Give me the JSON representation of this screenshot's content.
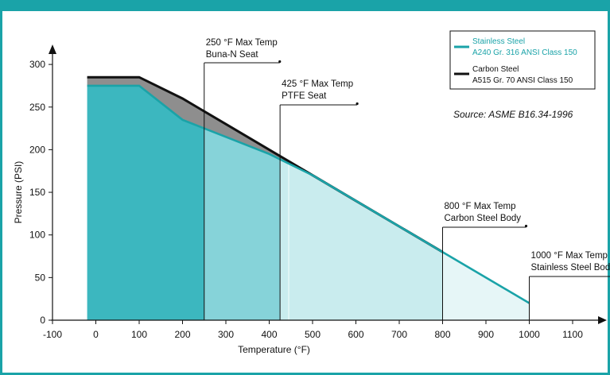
{
  "chart_data": {
    "type": "area",
    "xlabel": "Temperature (°F)",
    "ylabel": "Pressure (PSI)",
    "xlim": [
      -100,
      1100
    ],
    "ylim": [
      0,
      300
    ],
    "x_ticks": [
      -100,
      0,
      100,
      200,
      300,
      400,
      500,
      600,
      700,
      800,
      900,
      1000,
      1100
    ],
    "y_ticks": [
      0,
      50,
      100,
      150,
      200,
      250,
      300
    ],
    "series": [
      {
        "name": "Carbon Steel",
        "detail": "A515 Gr. 70 ANSI Class 150",
        "color": "#111111",
        "x": [
          -20,
          100,
          200,
          300,
          400,
          500,
          600,
          700,
          800
        ],
        "y": [
          285,
          285,
          260,
          230,
          200,
          170,
          140,
          110,
          80
        ]
      },
      {
        "name": "Stainless Steel",
        "detail": "A240 Gr. 316 ANSI Class 150",
        "color": "#1aa3a8",
        "x": [
          -20,
          100,
          200,
          300,
          400,
          500,
          600,
          700,
          800,
          900,
          1000
        ],
        "y": [
          275,
          275,
          235,
          215,
          195,
          170,
          140,
          110,
          80,
          50,
          20
        ]
      }
    ],
    "annotations": [
      {
        "x": 250,
        "line1": "250 °F Max Temp",
        "line2": "Buna-N Seat"
      },
      {
        "x": 425,
        "line1": "425 °F Max Temp",
        "line2": "PTFE Seat"
      },
      {
        "x": 800,
        "line1": "800 °F Max Temp",
        "line2": "Carbon Steel Body"
      },
      {
        "x": 1000,
        "line1": "1000 °F Max Temp",
        "line2": "Stainless Steel Body"
      }
    ],
    "source": "Source: ASME B16.34-1996",
    "legend_position": "top-right",
    "grid": false
  },
  "colors": {
    "frame": "#1aa3a8",
    "fill_buna": "#3cb7bf",
    "fill_ptfe": "#86d3d9",
    "fill_carbon_body": "#c9ecee",
    "fill_ss_body": "#e6f6f7",
    "fill_carbon_gap": "#8e8e8e"
  }
}
